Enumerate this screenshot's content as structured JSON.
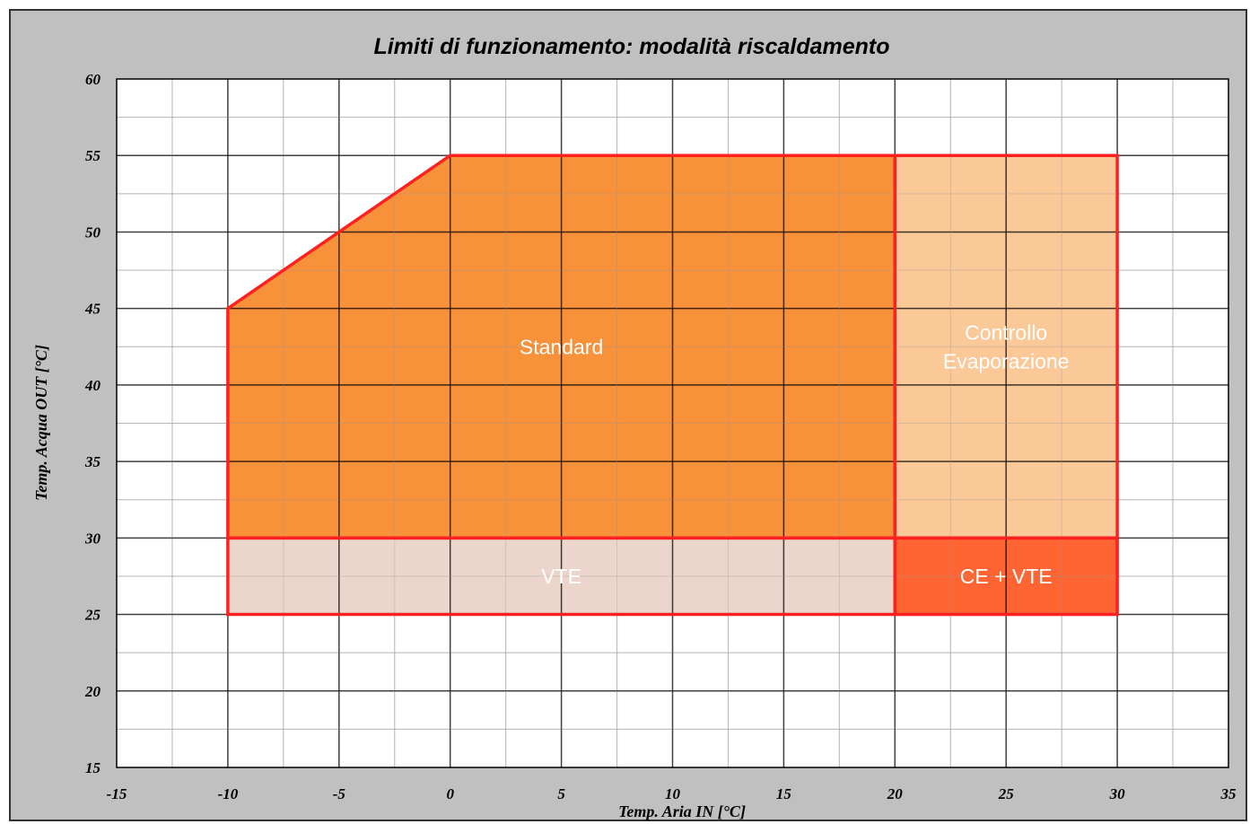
{
  "chart_data": {
    "type": "area",
    "title": "Limiti di funzionamento: modalità riscaldamento",
    "xlabel": "Temp. Aria IN [°C]",
    "ylabel": "Temp. Acqua OUT [°C]",
    "xlim": [
      -15,
      35
    ],
    "ylim": [
      15,
      60
    ],
    "x_ticks": [
      -15,
      -10,
      -5,
      0,
      5,
      10,
      15,
      20,
      25,
      30,
      35
    ],
    "y_ticks": [
      15,
      20,
      25,
      30,
      35,
      40,
      45,
      50,
      55,
      60
    ],
    "grid": true,
    "regions": [
      {
        "name": "Standard",
        "label_lines": [
          "Standard"
        ],
        "fill": "#f7913a",
        "points": [
          [
            -10,
            30
          ],
          [
            -10,
            45
          ],
          [
            0,
            55
          ],
          [
            20,
            55
          ],
          [
            20,
            30
          ]
        ]
      },
      {
        "name": "Controllo Evaporazione",
        "label_lines": [
          "Controllo",
          "Evaporazione"
        ],
        "fill": "#fbc898",
        "points": [
          [
            20,
            30
          ],
          [
            20,
            55
          ],
          [
            30,
            55
          ],
          [
            30,
            30
          ]
        ]
      },
      {
        "name": "VTE",
        "label_lines": [
          "VTE"
        ],
        "fill": "#ecd6cb",
        "points": [
          [
            -10,
            25
          ],
          [
            -10,
            30
          ],
          [
            20,
            30
          ],
          [
            20,
            25
          ]
        ]
      },
      {
        "name": "CE + VTE",
        "label_lines": [
          "CE + VTE"
        ],
        "fill": "#fe6532",
        "points": [
          [
            20,
            25
          ],
          [
            20,
            30
          ],
          [
            30,
            30
          ],
          [
            30,
            25
          ]
        ]
      }
    ],
    "outline_color": "#ff2020"
  }
}
